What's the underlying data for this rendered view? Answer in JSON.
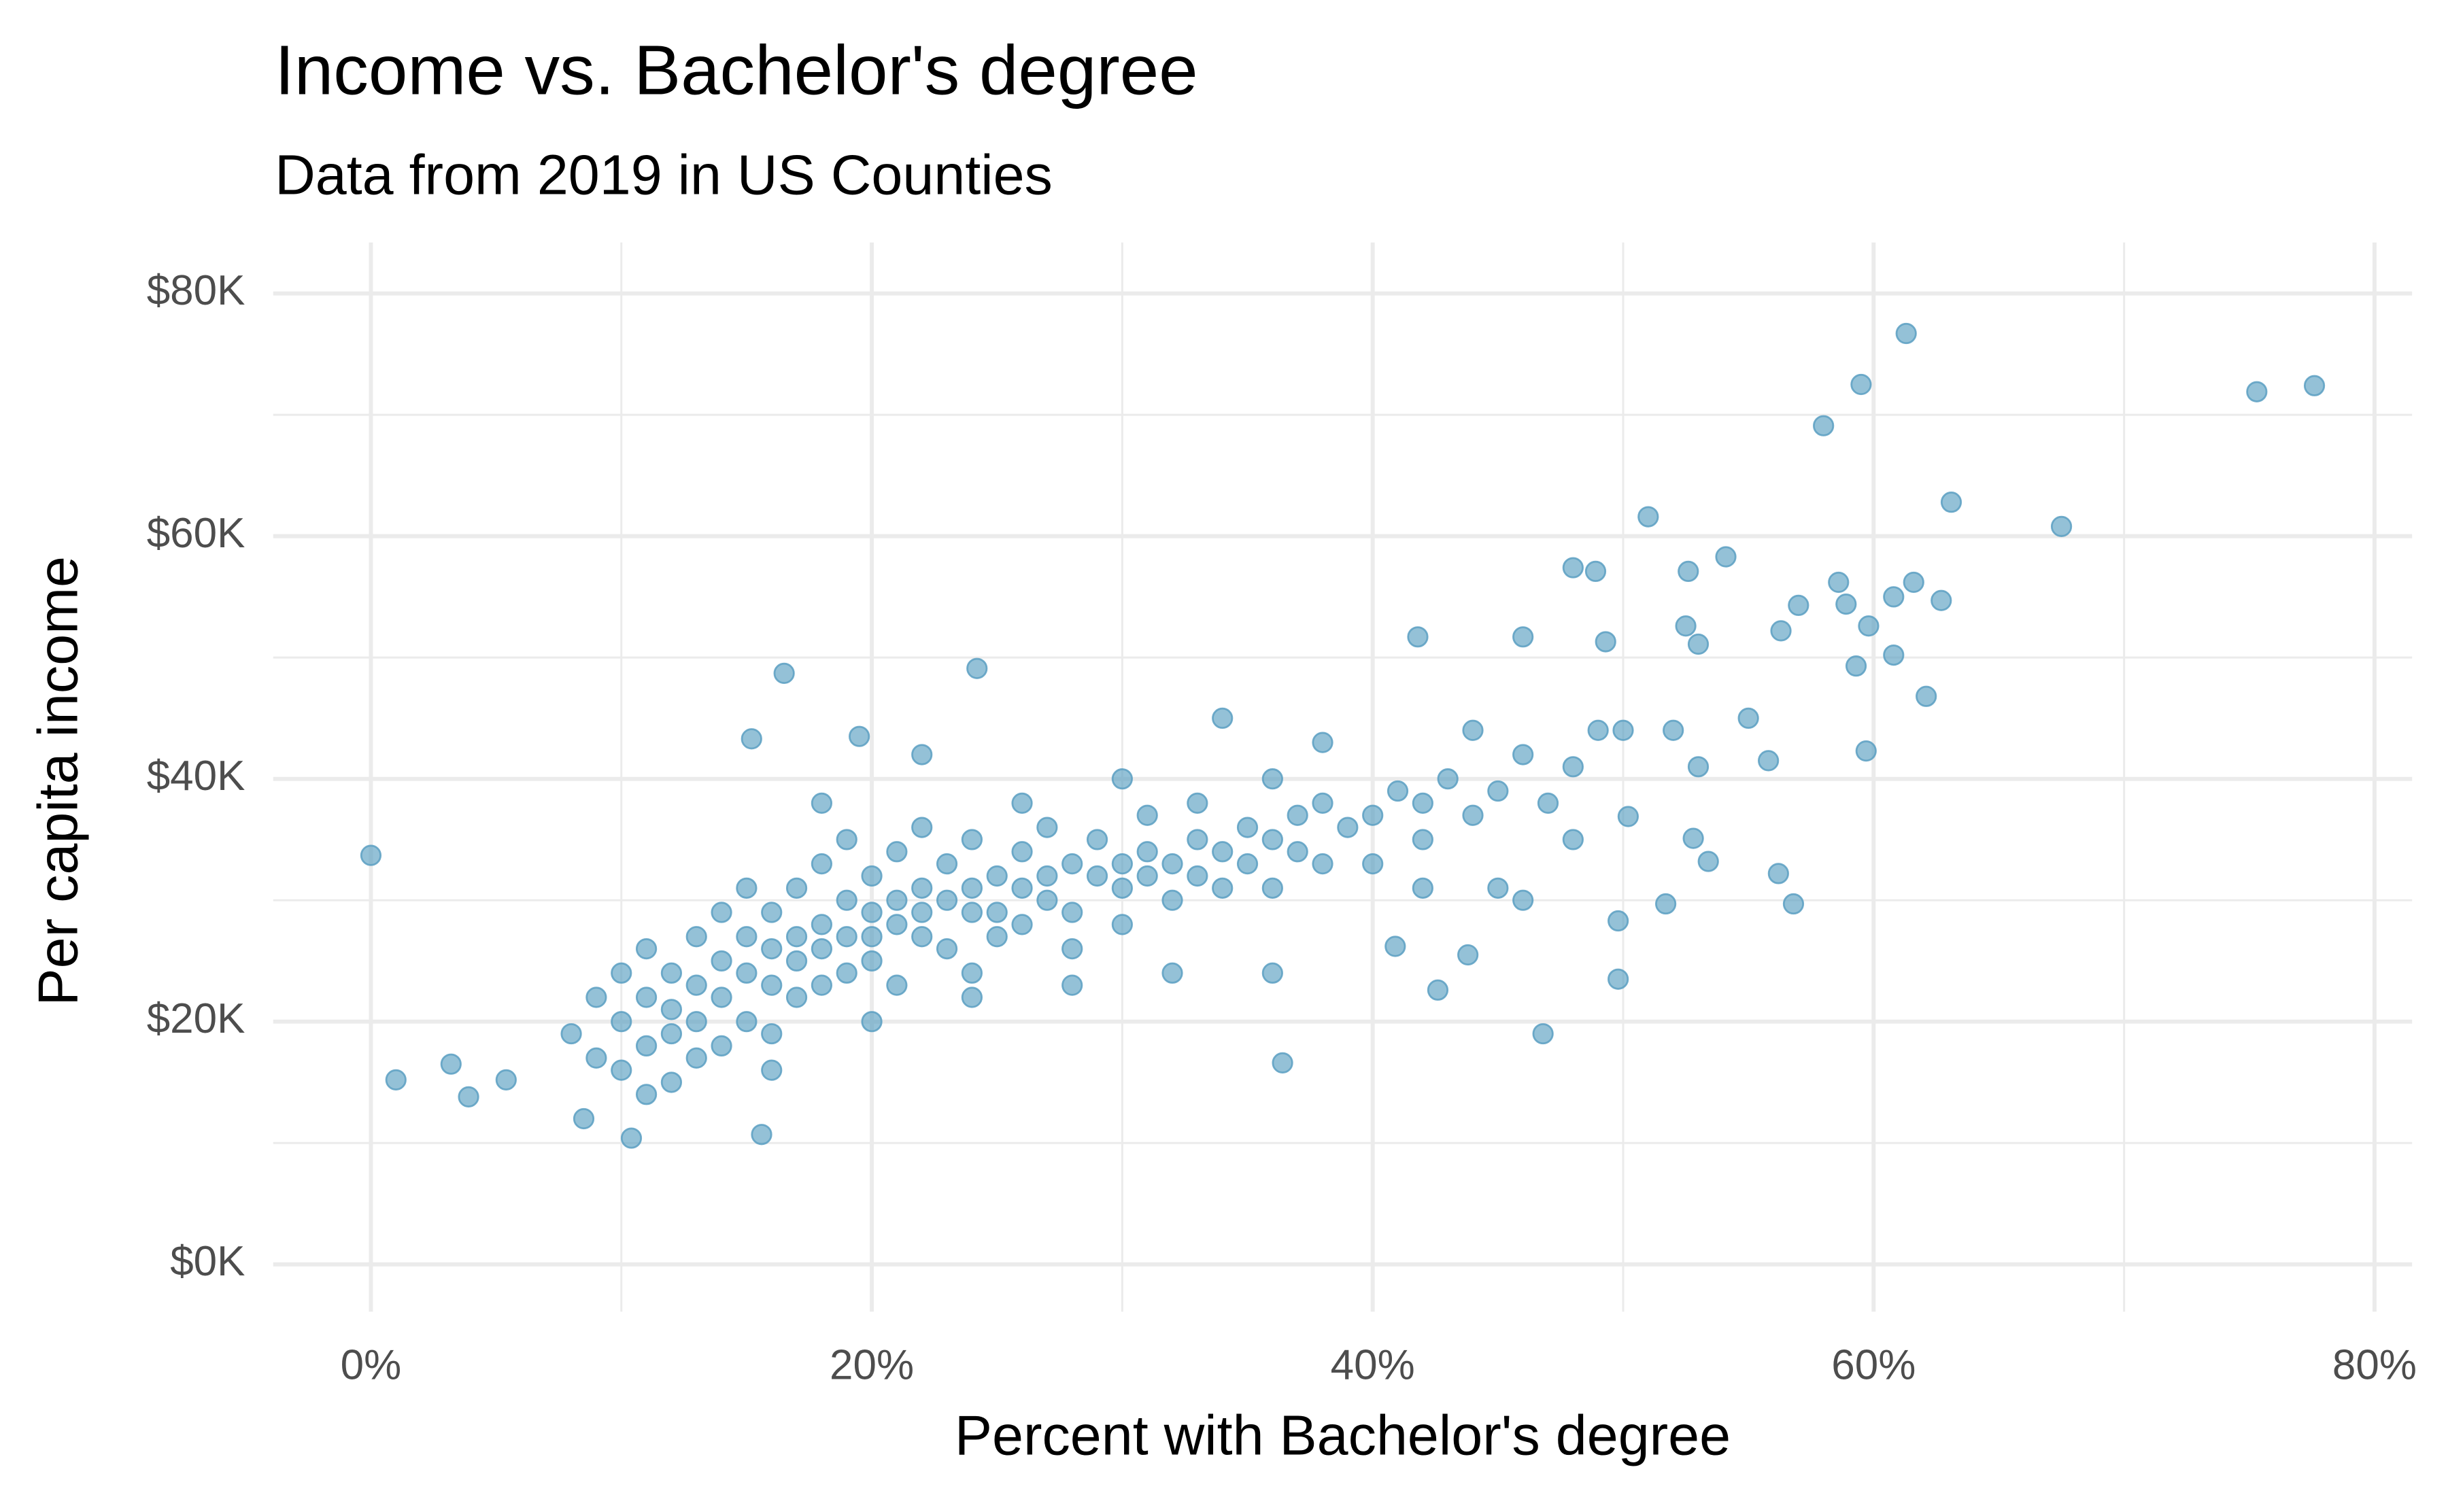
{
  "chart_data": {
    "type": "scatter",
    "title": "Income vs. Bachelor's degree",
    "subtitle": "Data from 2019 in US Counties",
    "x_label": "Percent with Bachelor's degree",
    "y_label": "Per capita income",
    "color": "#5b9fc2",
    "xlim": [
      -3.9,
      81.5
    ],
    "ylim": [
      -3900,
      84200
    ],
    "xticks": [
      {
        "value": 0,
        "label": "0%"
      },
      {
        "value": 20,
        "label": "20%"
      },
      {
        "value": 40,
        "label": "40%"
      },
      {
        "value": 60,
        "label": "60%"
      },
      {
        "value": 80,
        "label": "80%"
      }
    ],
    "yticks": [
      {
        "value": 0,
        "label": "$0K"
      },
      {
        "value": 20000,
        "label": "$20K"
      },
      {
        "value": 40000,
        "label": "$40K"
      },
      {
        "value": 60000,
        "label": "$60K"
      },
      {
        "value": 80000,
        "label": "$80K"
      }
    ],
    "grid": true,
    "x": [
      0,
      1.0,
      3.2,
      3.9,
      5.4,
      61.3,
      59.5,
      75.3,
      77.6,
      58.0,
      63.1,
      67.5,
      51.0,
      48.0,
      48.9,
      54.1,
      52.6,
      58.6,
      61.6,
      62.7,
      60.8,
      58.9,
      57.0,
      59.8,
      52.5,
      53.0,
      56.3,
      41.8,
      46.0,
      49.3,
      60.8,
      59.3,
      62.1,
      59.7,
      55.8,
      49.8,
      46.8,
      16.5,
      24.2,
      36.4,
      10.4,
      15.6,
      8.5,
      56.2,
      56.8,
      51.7,
      49.8,
      42.6,
      15.2,
      19.5,
      53.4,
      52.8,
      50.2,
      43.8,
      40.9,
      8,
      9,
      9,
      10,
      10,
      10,
      11,
      11,
      11,
      12,
      12,
      12,
      12,
      13,
      13,
      13,
      14,
      14,
      14,
      14,
      15,
      15,
      15,
      15,
      16,
      16,
      16,
      16,
      17,
      17,
      17,
      17,
      18,
      18,
      18,
      18,
      19,
      19,
      19,
      19,
      20,
      20,
      20,
      20,
      21,
      21,
      21,
      21,
      22,
      22,
      22,
      22,
      23,
      23,
      23,
      24,
      24,
      24,
      24,
      25,
      25,
      25,
      26,
      26,
      26,
      27,
      27,
      27,
      28,
      28,
      28,
      29,
      29,
      30,
      30,
      30,
      31,
      31,
      31,
      32,
      32,
      33,
      33,
      33,
      34,
      34,
      35,
      35,
      36,
      36,
      36,
      37,
      37,
      38,
      38,
      39,
      40,
      40,
      41,
      42,
      42,
      43,
      44,
      45,
      45,
      46,
      47,
      48,
      48,
      49,
      50,
      46,
      44,
      38,
      34,
      30,
      26,
      22,
      18,
      32,
      28,
      24,
      20,
      16,
      13,
      11,
      36,
      42,
      52,
      55,
      53
    ],
    "y": [
      33700,
      15200,
      16500,
      13800,
      15200,
      76700,
      72500,
      71900,
      72400,
      69100,
      62800,
      60800,
      61600,
      57400,
      57100,
      58300,
      57100,
      56200,
      56200,
      54700,
      55000,
      54400,
      54300,
      52600,
      52600,
      51100,
      52200,
      51700,
      51700,
      51300,
      50200,
      49300,
      46800,
      42300,
      41500,
      23500,
      19000,
      48700,
      49100,
      16600,
      10400,
      10700,
      12000,
      32200,
      29700,
      29700,
      28300,
      22600,
      43300,
      43500,
      33200,
      35100,
      36900,
      25500,
      26200,
      19000,
      22000,
      17000,
      24000,
      20000,
      16000,
      22000,
      26000,
      18000,
      21000,
      24000,
      19000,
      15000,
      23000,
      27000,
      20000,
      25000,
      22000,
      18000,
      29000,
      24000,
      27000,
      20000,
      31000,
      26000,
      23000,
      29000,
      19000,
      27000,
      25000,
      31000,
      22000,
      28000,
      26000,
      33000,
      23000,
      27000,
      30000,
      24000,
      35000,
      29000,
      27000,
      32000,
      25000,
      30000,
      28000,
      34000,
      23000,
      31000,
      29000,
      27000,
      36000,
      30000,
      33000,
      26000,
      31000,
      29000,
      35000,
      24000,
      32000,
      29000,
      27000,
      31000,
      34000,
      28000,
      32000,
      30000,
      36000,
      33000,
      29000,
      26000,
      32000,
      35000,
      33000,
      31000,
      28000,
      34000,
      32000,
      37000,
      33000,
      30000,
      35000,
      32000,
      38000,
      34000,
      31000,
      36000,
      33000,
      35000,
      40000,
      31000,
      37000,
      34000,
      38000,
      33000,
      36000,
      37000,
      33000,
      39000,
      38000,
      35000,
      40000,
      37000,
      39000,
      31000,
      42000,
      38000,
      41000,
      35000,
      44000,
      44000,
      30000,
      44000,
      43000,
      45000,
      40000,
      38000,
      42000,
      38000,
      24000,
      23000,
      22000,
      20000,
      16000,
      17000,
      14000,
      24000,
      31000,
      44000,
      45000,
      41000
    ]
  }
}
